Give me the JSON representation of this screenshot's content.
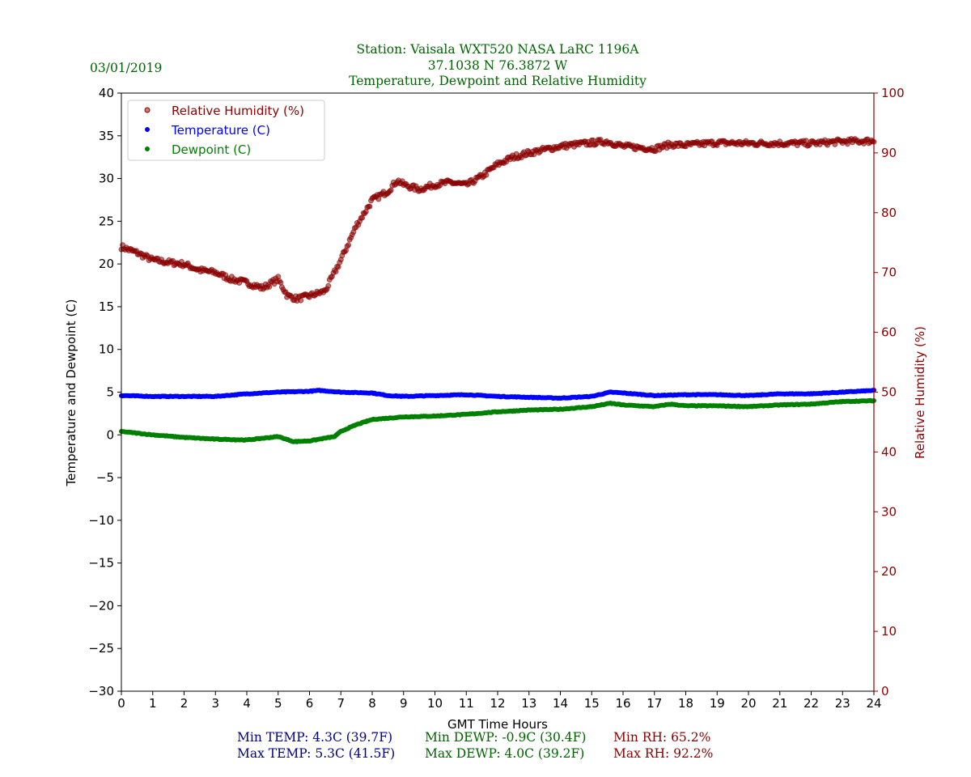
{
  "chart_data": {
    "type": "scatter",
    "title_lines": [
      "Station:  Vaisala WXT520  NASA LaRC 1196A",
      "37.1038 N 76.3872 W",
      "Temperature, Dewpoint and Relative Humidity"
    ],
    "date": "03/01/2019",
    "xlabel": "GMT Time Hours",
    "ylabel": "Temperature and Dewpoint (C)",
    "ylabel_right": "Relative Humidity (%)",
    "xlim": [
      0,
      24
    ],
    "ylim": [
      -30,
      40
    ],
    "ylim_right": [
      0,
      100
    ],
    "xticks": [
      0,
      1,
      2,
      3,
      4,
      5,
      6,
      7,
      8,
      9,
      10,
      11,
      12,
      13,
      14,
      15,
      16,
      17,
      18,
      19,
      20,
      21,
      22,
      23,
      24
    ],
    "yticks": [
      "−30",
      "−25",
      "−20",
      "−15",
      "−10",
      "−5",
      "0",
      "5",
      "10",
      "15",
      "20",
      "25",
      "30",
      "35",
      "40"
    ],
    "yticks_right": [
      "0",
      "10",
      "20",
      "30",
      "40",
      "50",
      "60",
      "70",
      "80",
      "90",
      "100"
    ],
    "legend_placement": "top-left",
    "series": [
      {
        "name": "Relative Humidity (%)",
        "axis": "right",
        "color": "#8b0000",
        "x": [
          0,
          0.5,
          1,
          1.5,
          2,
          2.5,
          3,
          3.5,
          4,
          4.5,
          5,
          5.3,
          5.6,
          6,
          6.5,
          7,
          7.5,
          8,
          8.5,
          8.8,
          9,
          9.5,
          10,
          10.5,
          11,
          11.5,
          12,
          12.5,
          13,
          14,
          15,
          15.5,
          16,
          17,
          17.5,
          18,
          19,
          20,
          21,
          22,
          23,
          24
        ],
        "y": [
          74.3,
          73.3,
          72.1,
          71.7,
          71.4,
          70.4,
          70.0,
          68.9,
          68.3,
          67.4,
          68.9,
          66.1,
          65.6,
          66.1,
          66.9,
          72.1,
          77.9,
          82.1,
          83.6,
          85.4,
          84.7,
          83.9,
          84.7,
          85.1,
          84.6,
          86.1,
          88.1,
          89.3,
          90.0,
          91.1,
          91.7,
          91.9,
          91.1,
          90.7,
          91.4,
          91.3,
          91.7,
          91.6,
          91.6,
          91.6,
          91.9,
          92.0
        ]
      },
      {
        "name": "Temperature (C)",
        "axis": "left",
        "color": "#0000ff",
        "x": [
          0,
          1,
          2,
          3,
          4,
          5,
          6,
          6.3,
          7,
          8,
          8.5,
          9,
          10,
          11,
          12,
          13,
          14,
          15,
          15.6,
          16,
          17,
          18,
          19,
          20,
          21,
          22,
          23,
          24
        ],
        "y": [
          4.6,
          4.5,
          4.5,
          4.5,
          4.8,
          5.0,
          5.1,
          5.2,
          5.0,
          4.9,
          4.6,
          4.5,
          4.6,
          4.7,
          4.5,
          4.4,
          4.3,
          4.5,
          5.0,
          4.9,
          4.6,
          4.7,
          4.7,
          4.6,
          4.8,
          4.8,
          5.0,
          5.2
        ]
      },
      {
        "name": "Dewpoint (C)",
        "axis": "left",
        "color": "#008000",
        "x": [
          0,
          1,
          2,
          3,
          4,
          5,
          5.5,
          6,
          6.8,
          7,
          7.5,
          8,
          9,
          10,
          11,
          12,
          13,
          14,
          15,
          15.6,
          16,
          17,
          17.5,
          18,
          19,
          20,
          21,
          22,
          23,
          24
        ],
        "y": [
          0.4,
          0.0,
          -0.3,
          -0.5,
          -0.6,
          -0.2,
          -0.8,
          -0.7,
          -0.2,
          0.4,
          1.2,
          1.8,
          2.1,
          2.2,
          2.4,
          2.7,
          2.9,
          3.0,
          3.3,
          3.7,
          3.5,
          3.3,
          3.6,
          3.4,
          3.4,
          3.3,
          3.5,
          3.6,
          3.9,
          4.0
        ]
      }
    ],
    "stats": {
      "min_temp": "Min TEMP: 4.3C (39.7F)",
      "max_temp": "Max TEMP: 5.3C (41.5F)",
      "min_dewp": "Min DEWP: -0.9C (30.4F)",
      "max_dewp": "Max DEWP: 4.0C (39.2F)",
      "min_rh": "Min RH: 65.2%",
      "max_rh": "Max RH: 92.2%"
    }
  }
}
